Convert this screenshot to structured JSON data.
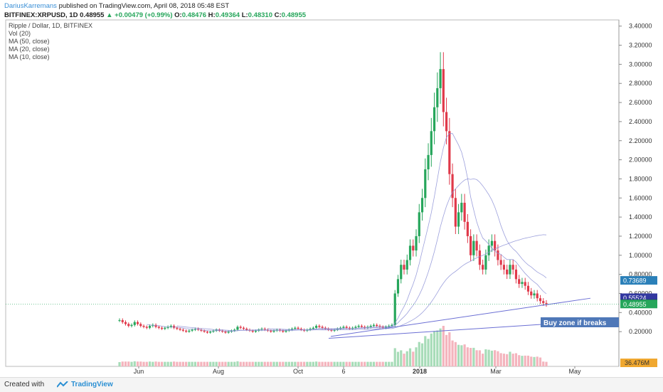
{
  "header": {
    "author": "DariusKarremans",
    "published": "published on TradingView.com, April 08, 2018 05:48 EST",
    "symbol": "BITFINEX:XRPUSD, 1D",
    "last": "0.48955",
    "change": "+0.00479 (+0.99%)",
    "o_label": "O:",
    "o": "0.48476",
    "h_label": "H:",
    "h": "0.49364",
    "l_label": "L:",
    "l": "0.48310",
    "c_label": "C:",
    "c": "0.48955"
  },
  "legend": {
    "title": "Ripple / Dollar, 1D, BITFINEX",
    "items": [
      "Vol (20)",
      "MA (50, close)",
      "MA (20, close)",
      "MA (10, close)"
    ]
  },
  "footer": {
    "created_with": "Created with",
    "brand": "TradingView"
  },
  "colors": {
    "up": "#26a65b",
    "down": "#e0394a",
    "ma": "#8b8fd6",
    "volume_up": "#a7dcb8",
    "volume_down": "#f4b4bd",
    "trendline": "#6b6fd4"
  },
  "chart_data": {
    "type": "candlestick",
    "ylim": [
      0,
      3.45
    ],
    "y_ticks": [
      "3.40000",
      "3.20000",
      "3.00000",
      "2.80000",
      "2.60000",
      "2.40000",
      "2.20000",
      "2.00000",
      "1.80000",
      "1.60000",
      "1.40000",
      "1.20000",
      "1.00000",
      "0.80000",
      "0.60000",
      "0.40000",
      "0.20000"
    ],
    "x_ticks": [
      "Jun",
      "Aug",
      "Oct",
      "6",
      "2018",
      "Mar",
      "May"
    ],
    "series_close": [
      0.32,
      0.3,
      0.28,
      0.26,
      0.27,
      0.3,
      0.28,
      0.26,
      0.25,
      0.24,
      0.26,
      0.27,
      0.25,
      0.24,
      0.23,
      0.24,
      0.25,
      0.26,
      0.24,
      0.23,
      0.22,
      0.21,
      0.2,
      0.21,
      0.22,
      0.23,
      0.22,
      0.21,
      0.2,
      0.19,
      0.2,
      0.21,
      0.22,
      0.21,
      0.2,
      0.19,
      0.2,
      0.21,
      0.22,
      0.25,
      0.24,
      0.23,
      0.22,
      0.21,
      0.2,
      0.21,
      0.22,
      0.23,
      0.22,
      0.21,
      0.2,
      0.21,
      0.22,
      0.21,
      0.2,
      0.21,
      0.22,
      0.23,
      0.24,
      0.23,
      0.22,
      0.21,
      0.22,
      0.23,
      0.24,
      0.26,
      0.25,
      0.24,
      0.23,
      0.22,
      0.21,
      0.22,
      0.23,
      0.24,
      0.25,
      0.24,
      0.23,
      0.24,
      0.25,
      0.26,
      0.25,
      0.24,
      0.25,
      0.26,
      0.27,
      0.26,
      0.25,
      0.24,
      0.25,
      0.26,
      0.27,
      0.6,
      0.75,
      0.9,
      0.85,
      0.95,
      1.1,
      1.05,
      1.2,
      1.45,
      1.6,
      1.9,
      2.05,
      2.3,
      2.55,
      2.75,
      2.95,
      2.5,
      2.3,
      1.85,
      1.6,
      1.3,
      1.45,
      1.55,
      1.35,
      1.2,
      1.0,
      1.15,
      1.05,
      0.9,
      0.85,
      1.0,
      1.1,
      1.15,
      1.05,
      0.95,
      0.9,
      0.85,
      0.8,
      0.9,
      0.85,
      0.75,
      0.7,
      0.72,
      0.68,
      0.62,
      0.58,
      0.6,
      0.55,
      0.52,
      0.5,
      0.49
    ],
    "price_labels": [
      {
        "text": "0.73689",
        "value": 0.73689,
        "color": "#2b80b9"
      },
      {
        "text": "0.55524",
        "value": 0.55524,
        "color": "#3238a0"
      },
      {
        "text": "0.49424",
        "value": 0.49424,
        "color": "#1f2a66"
      },
      {
        "text": "0.48955",
        "value": 0.48955,
        "color": "#26a65b"
      }
    ],
    "volume_label": "36.476M",
    "annotation": "Buy zone if breaks"
  }
}
